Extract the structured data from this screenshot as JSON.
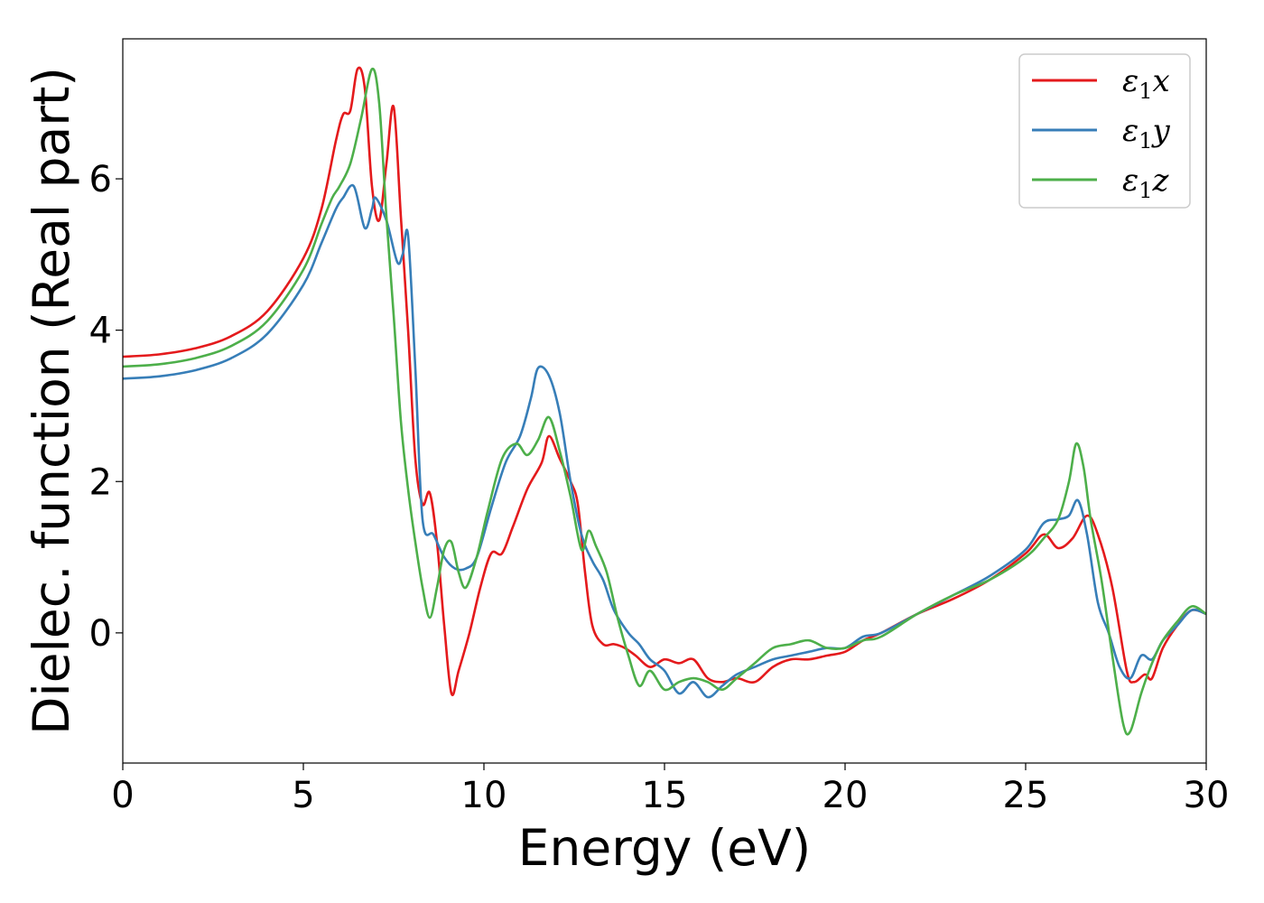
{
  "chart_data": {
    "type": "line",
    "title": "",
    "xlabel": "Energy (eV)",
    "ylabel": "Dielec. function (Real part)",
    "xlim": [
      0,
      30
    ],
    "ylim": [
      -1.72,
      7.85
    ],
    "xticks": [
      0,
      5,
      10,
      15,
      20,
      25,
      30
    ],
    "xtick_labels": [
      "0",
      "5",
      "10",
      "15",
      "20",
      "25",
      "30"
    ],
    "yticks": [
      0,
      2,
      4,
      6
    ],
    "ytick_labels": [
      "0",
      "2",
      "4",
      "6"
    ],
    "grid": false,
    "legend": "top-right",
    "series": [
      {
        "name": "ε1x",
        "legend_main": "ε",
        "legend_sub": "1",
        "legend_tail": "x",
        "color": "#e41a1c",
        "points": [
          [
            0,
            3.65
          ],
          [
            1,
            3.68
          ],
          [
            2,
            3.76
          ],
          [
            3,
            3.92
          ],
          [
            4,
            4.25
          ],
          [
            5,
            4.95
          ],
          [
            5.5,
            5.6
          ],
          [
            5.9,
            6.5
          ],
          [
            6.1,
            6.85
          ],
          [
            6.3,
            6.9
          ],
          [
            6.5,
            7.45
          ],
          [
            6.7,
            7.2
          ],
          [
            6.9,
            5.9
          ],
          [
            7.1,
            5.45
          ],
          [
            7.3,
            6.2
          ],
          [
            7.5,
            6.95
          ],
          [
            7.7,
            5.5
          ],
          [
            7.9,
            4.0
          ],
          [
            8.1,
            2.3
          ],
          [
            8.3,
            1.7
          ],
          [
            8.5,
            1.85
          ],
          [
            8.7,
            1.2
          ],
          [
            8.9,
            0.1
          ],
          [
            9.1,
            -0.8
          ],
          [
            9.3,
            -0.5
          ],
          [
            9.6,
            0.0
          ],
          [
            9.9,
            0.6
          ],
          [
            10.2,
            1.05
          ],
          [
            10.5,
            1.05
          ],
          [
            10.8,
            1.4
          ],
          [
            11.2,
            1.9
          ],
          [
            11.6,
            2.25
          ],
          [
            11.8,
            2.6
          ],
          [
            12.1,
            2.3
          ],
          [
            12.4,
            2.0
          ],
          [
            12.6,
            1.7
          ],
          [
            12.8,
            0.8
          ],
          [
            13.0,
            0.1
          ],
          [
            13.3,
            -0.15
          ],
          [
            13.6,
            -0.15
          ],
          [
            13.9,
            -0.2
          ],
          [
            14.2,
            -0.3
          ],
          [
            14.6,
            -0.45
          ],
          [
            15.0,
            -0.35
          ],
          [
            15.4,
            -0.4
          ],
          [
            15.8,
            -0.35
          ],
          [
            16.2,
            -0.6
          ],
          [
            16.6,
            -0.65
          ],
          [
            17.0,
            -0.6
          ],
          [
            17.5,
            -0.65
          ],
          [
            18.0,
            -0.45
          ],
          [
            18.5,
            -0.35
          ],
          [
            19.0,
            -0.35
          ],
          [
            19.5,
            -0.3
          ],
          [
            20.0,
            -0.25
          ],
          [
            20.5,
            -0.1
          ],
          [
            21.0,
            0.0
          ],
          [
            22.0,
            0.25
          ],
          [
            23.0,
            0.45
          ],
          [
            24.0,
            0.7
          ],
          [
            25.0,
            1.05
          ],
          [
            25.5,
            1.3
          ],
          [
            25.9,
            1.12
          ],
          [
            26.3,
            1.25
          ],
          [
            26.7,
            1.55
          ],
          [
            27.0,
            1.3
          ],
          [
            27.4,
            0.6
          ],
          [
            27.8,
            -0.5
          ],
          [
            28.0,
            -0.65
          ],
          [
            28.3,
            -0.55
          ],
          [
            28.5,
            -0.6
          ],
          [
            28.8,
            -0.2
          ],
          [
            29.2,
            0.1
          ],
          [
            29.6,
            0.3
          ],
          [
            30.0,
            0.25
          ]
        ]
      },
      {
        "name": "ε1y",
        "legend_main": "ε",
        "legend_sub": "1",
        "legend_tail": "y",
        "color": "#377eb8",
        "points": [
          [
            0,
            3.36
          ],
          [
            1,
            3.39
          ],
          [
            2,
            3.47
          ],
          [
            3,
            3.63
          ],
          [
            4,
            3.95
          ],
          [
            5,
            4.6
          ],
          [
            5.5,
            5.15
          ],
          [
            5.9,
            5.6
          ],
          [
            6.1,
            5.75
          ],
          [
            6.4,
            5.9
          ],
          [
            6.7,
            5.35
          ],
          [
            6.9,
            5.6
          ],
          [
            7.0,
            5.75
          ],
          [
            7.3,
            5.45
          ],
          [
            7.6,
            4.9
          ],
          [
            7.75,
            5.0
          ],
          [
            7.9,
            5.25
          ],
          [
            8.1,
            3.5
          ],
          [
            8.3,
            1.5
          ],
          [
            8.6,
            1.3
          ],
          [
            8.9,
            1.0
          ],
          [
            9.2,
            0.85
          ],
          [
            9.5,
            0.85
          ],
          [
            9.8,
            1.0
          ],
          [
            10.2,
            1.65
          ],
          [
            10.6,
            2.25
          ],
          [
            11.0,
            2.6
          ],
          [
            11.3,
            3.1
          ],
          [
            11.5,
            3.5
          ],
          [
            11.8,
            3.4
          ],
          [
            12.1,
            2.9
          ],
          [
            12.4,
            2.0
          ],
          [
            12.7,
            1.3
          ],
          [
            13.0,
            0.95
          ],
          [
            13.3,
            0.7
          ],
          [
            13.6,
            0.3
          ],
          [
            14.0,
            0.0
          ],
          [
            14.3,
            -0.15
          ],
          [
            14.6,
            -0.35
          ],
          [
            15.0,
            -0.5
          ],
          [
            15.4,
            -0.8
          ],
          [
            15.8,
            -0.65
          ],
          [
            16.2,
            -0.85
          ],
          [
            16.6,
            -0.7
          ],
          [
            17.0,
            -0.55
          ],
          [
            17.5,
            -0.45
          ],
          [
            18.0,
            -0.35
          ],
          [
            18.5,
            -0.3
          ],
          [
            19.0,
            -0.25
          ],
          [
            19.5,
            -0.2
          ],
          [
            20.0,
            -0.2
          ],
          [
            20.5,
            -0.05
          ],
          [
            21.0,
            0.0
          ],
          [
            22.0,
            0.25
          ],
          [
            23.0,
            0.5
          ],
          [
            24.0,
            0.75
          ],
          [
            25.0,
            1.1
          ],
          [
            25.5,
            1.45
          ],
          [
            25.9,
            1.5
          ],
          [
            26.2,
            1.55
          ],
          [
            26.45,
            1.75
          ],
          [
            26.7,
            1.3
          ],
          [
            27.0,
            0.4
          ],
          [
            27.3,
            0.0
          ],
          [
            27.6,
            -0.45
          ],
          [
            27.9,
            -0.6
          ],
          [
            28.2,
            -0.3
          ],
          [
            28.5,
            -0.35
          ],
          [
            28.8,
            -0.1
          ],
          [
            29.2,
            0.1
          ],
          [
            29.6,
            0.3
          ],
          [
            30.0,
            0.25
          ]
        ]
      },
      {
        "name": "ε1z",
        "legend_main": "ε",
        "legend_sub": "1",
        "legend_tail": "z",
        "color": "#4daf4a",
        "points": [
          [
            0,
            3.52
          ],
          [
            1,
            3.55
          ],
          [
            2,
            3.63
          ],
          [
            3,
            3.79
          ],
          [
            4,
            4.12
          ],
          [
            5,
            4.8
          ],
          [
            5.5,
            5.4
          ],
          [
            5.8,
            5.75
          ],
          [
            6.0,
            5.9
          ],
          [
            6.3,
            6.2
          ],
          [
            6.6,
            6.8
          ],
          [
            6.9,
            7.45
          ],
          [
            7.1,
            7.0
          ],
          [
            7.3,
            5.5
          ],
          [
            7.5,
            4.2
          ],
          [
            7.7,
            2.8
          ],
          [
            7.9,
            1.9
          ],
          [
            8.1,
            1.2
          ],
          [
            8.3,
            0.6
          ],
          [
            8.5,
            0.2
          ],
          [
            8.7,
            0.6
          ],
          [
            8.9,
            1.1
          ],
          [
            9.1,
            1.2
          ],
          [
            9.3,
            0.8
          ],
          [
            9.5,
            0.6
          ],
          [
            9.8,
            1.0
          ],
          [
            10.1,
            1.6
          ],
          [
            10.5,
            2.3
          ],
          [
            10.9,
            2.5
          ],
          [
            11.2,
            2.35
          ],
          [
            11.5,
            2.55
          ],
          [
            11.8,
            2.85
          ],
          [
            12.1,
            2.4
          ],
          [
            12.4,
            1.8
          ],
          [
            12.7,
            1.1
          ],
          [
            12.9,
            1.35
          ],
          [
            13.1,
            1.15
          ],
          [
            13.4,
            0.8
          ],
          [
            13.7,
            0.2
          ],
          [
            14.0,
            -0.3
          ],
          [
            14.3,
            -0.7
          ],
          [
            14.6,
            -0.5
          ],
          [
            15.0,
            -0.75
          ],
          [
            15.4,
            -0.65
          ],
          [
            15.8,
            -0.6
          ],
          [
            16.2,
            -0.65
          ],
          [
            16.6,
            -0.75
          ],
          [
            17.0,
            -0.6
          ],
          [
            17.5,
            -0.4
          ],
          [
            18.0,
            -0.2
          ],
          [
            18.5,
            -0.15
          ],
          [
            19.0,
            -0.1
          ],
          [
            19.5,
            -0.2
          ],
          [
            20.0,
            -0.2
          ],
          [
            20.5,
            -0.1
          ],
          [
            21.0,
            -0.05
          ],
          [
            22.0,
            0.25
          ],
          [
            23.0,
            0.5
          ],
          [
            24.0,
            0.7
          ],
          [
            25.0,
            1.0
          ],
          [
            25.5,
            1.25
          ],
          [
            25.9,
            1.5
          ],
          [
            26.2,
            2.0
          ],
          [
            26.4,
            2.5
          ],
          [
            26.6,
            2.2
          ],
          [
            26.8,
            1.5
          ],
          [
            27.1,
            0.7
          ],
          [
            27.4,
            -0.3
          ],
          [
            27.7,
            -1.2
          ],
          [
            27.9,
            -1.3
          ],
          [
            28.2,
            -0.8
          ],
          [
            28.5,
            -0.4
          ],
          [
            28.8,
            -0.1
          ],
          [
            29.2,
            0.15
          ],
          [
            29.6,
            0.35
          ],
          [
            30.0,
            0.25
          ]
        ]
      }
    ]
  }
}
